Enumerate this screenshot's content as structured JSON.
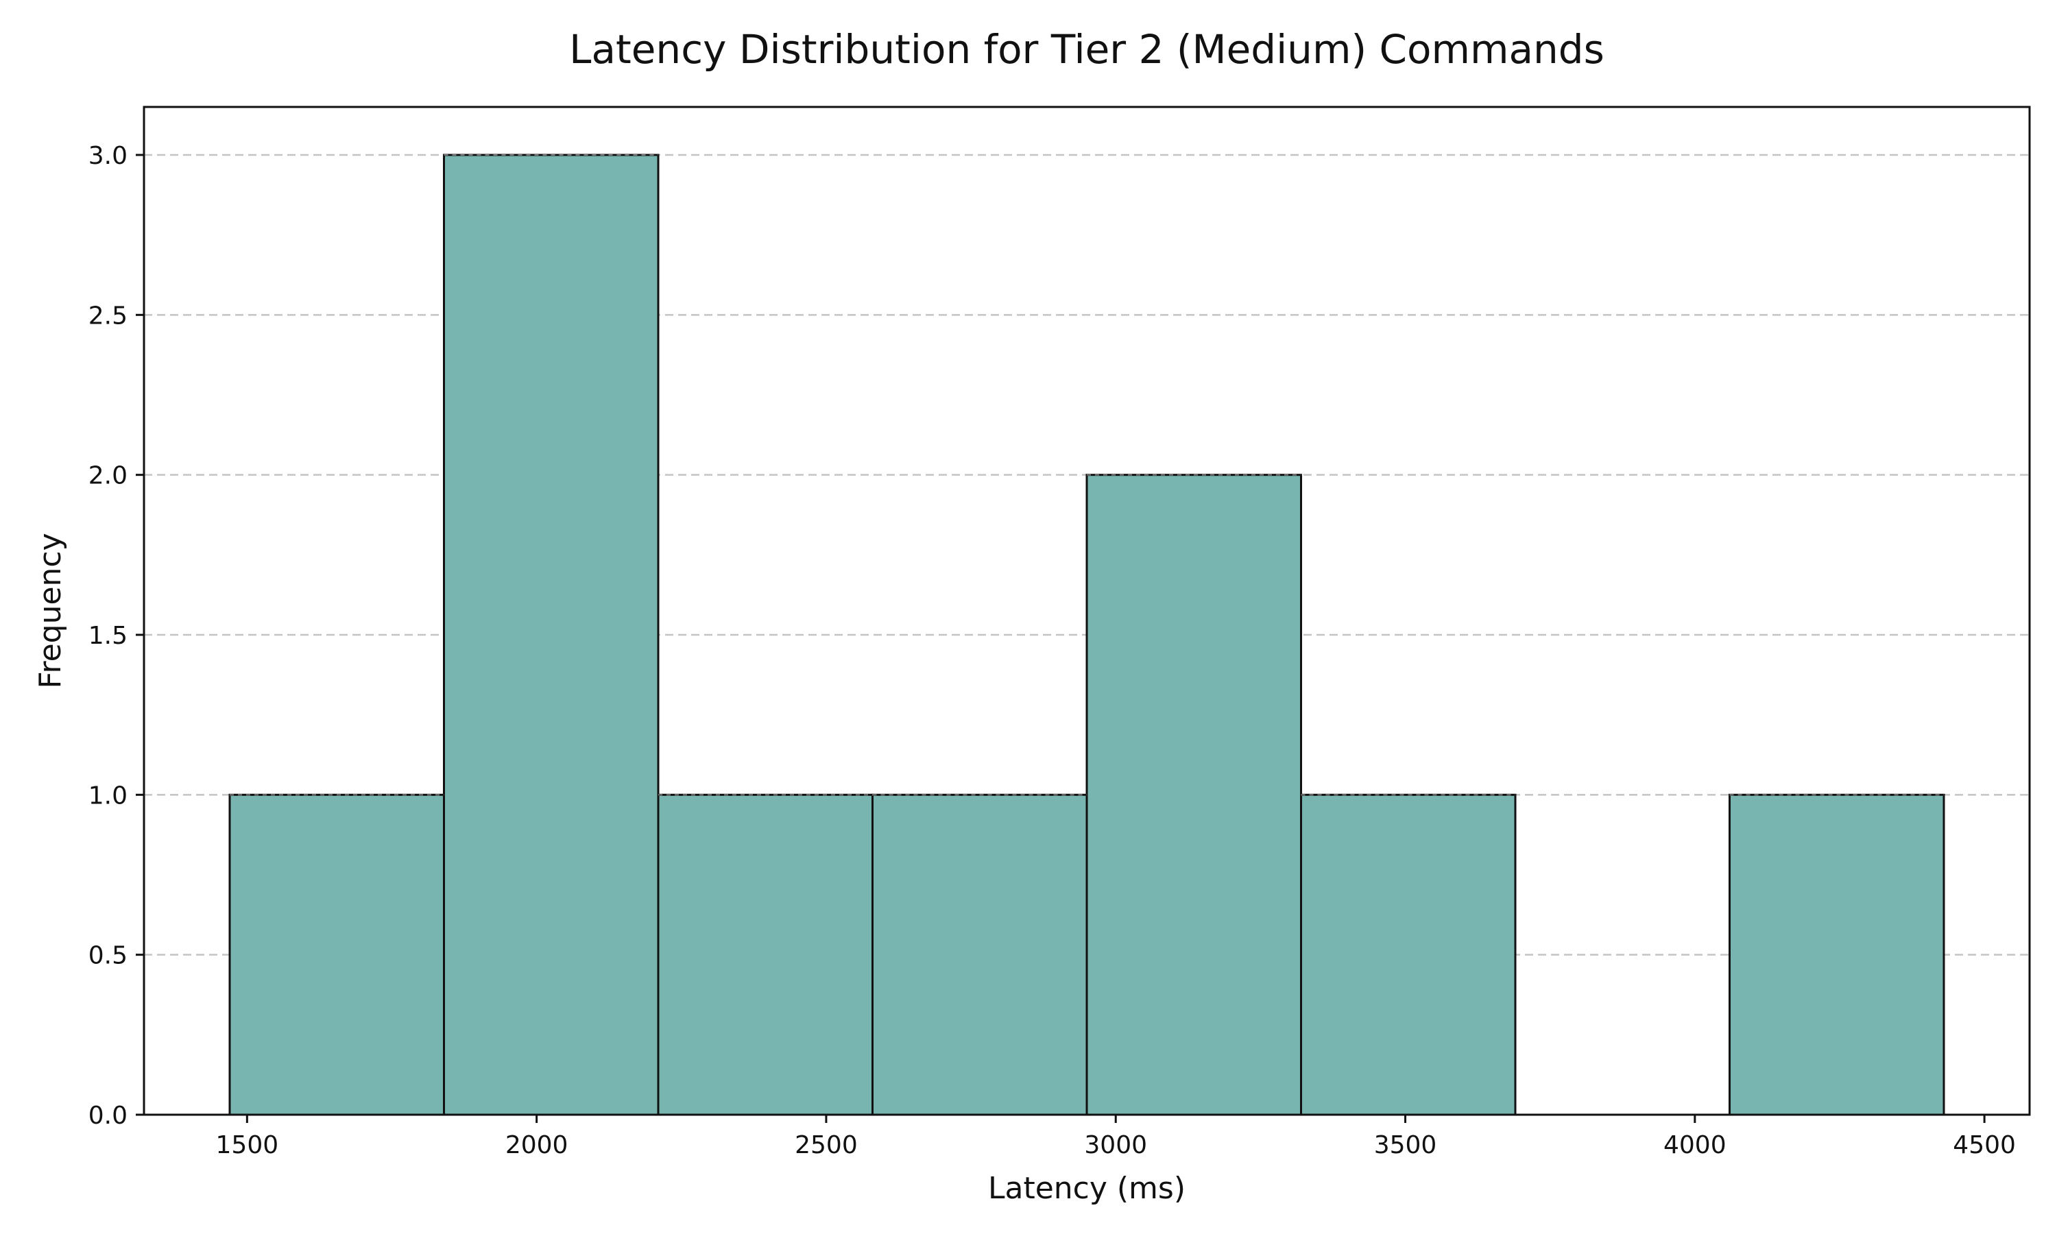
{
  "chart_data": {
    "type": "bar",
    "title": "Latency Distribution for Tier 2 (Medium) Commands",
    "xlabel": "Latency (ms)",
    "ylabel": "Frequency",
    "bins": [
      {
        "x0": 1470,
        "x1": 1840,
        "count": 1
      },
      {
        "x0": 1840,
        "x1": 2210,
        "count": 3
      },
      {
        "x0": 2210,
        "x1": 2580,
        "count": 1
      },
      {
        "x0": 2580,
        "x1": 2950,
        "count": 1
      },
      {
        "x0": 2950,
        "x1": 3320,
        "count": 2
      },
      {
        "x0": 3320,
        "x1": 3690,
        "count": 1
      },
      {
        "x0": 3690,
        "x1": 4060,
        "count": 0
      },
      {
        "x0": 4060,
        "x1": 4430,
        "count": 1
      }
    ],
    "xlim": [
      1322,
      4578
    ],
    "ylim": [
      0,
      3.15
    ],
    "xticks": [
      1500,
      2000,
      2500,
      3000,
      3500,
      4000,
      4500
    ],
    "xtick_labels": [
      "1500",
      "2000",
      "2500",
      "3000",
      "3500",
      "4000",
      "4500"
    ],
    "yticks": [
      0.0,
      0.5,
      1.0,
      1.5,
      2.0,
      2.5,
      3.0
    ],
    "ytick_labels": [
      "0.0",
      "0.5",
      "1.0",
      "1.5",
      "2.0",
      "2.5",
      "3.0"
    ],
    "grid": "y-dashed",
    "colors": {
      "bar": "#78b5b1",
      "edge": "#111111",
      "grid": "#c4c4c4"
    }
  }
}
